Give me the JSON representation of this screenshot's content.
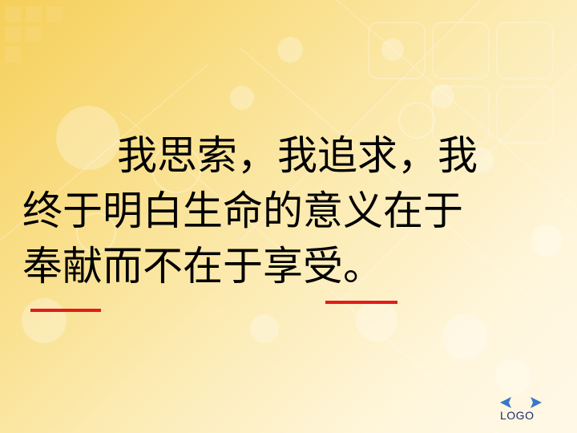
{
  "slide": {
    "lines": [
      "我思索，我追求，我",
      "终于明白生命的意义在于",
      "奉献而不在于享受。"
    ],
    "underline_color": "#e21b1b"
  },
  "logo": {
    "text": "LOGO"
  }
}
